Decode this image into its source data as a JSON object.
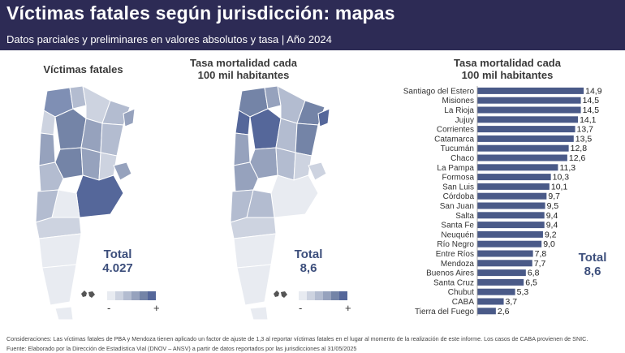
{
  "header": {
    "title": "Víctimas fatales según jurisdicción: mapas",
    "subtitle": "Datos parciales y preliminares en valores absolutos y tasa | Año 2024"
  },
  "panels": {
    "left": {
      "title": "Víctimas fatales",
      "total_label": "Total",
      "total_value": "4.027",
      "legend_min": "-",
      "legend_max": "+"
    },
    "middle": {
      "title_line1": "Tasa mortalidad cada",
      "title_line2": "100 mil habitantes",
      "total_label": "Total",
      "total_value": "8,6",
      "legend_min": "-",
      "legend_max": "+"
    },
    "right": {
      "title_line1": "Tasa mortalidad cada",
      "title_line2": "100 mil habitantes",
      "total_label": "Total",
      "total_value": "8,6"
    }
  },
  "colors": {
    "header_bg": "#2d2b55",
    "bar": "#4a5a88",
    "accent_text": "#3d4f7c",
    "legend_scale": [
      "#e8ebf1",
      "#cdd3e0",
      "#b3bcd0",
      "#96a2bd",
      "#7484a7",
      "#55679a"
    ]
  },
  "chart_data": {
    "type": "bar",
    "orientation": "horizontal",
    "title": "Tasa mortalidad cada 100 mil habitantes",
    "categories": [
      "Santiago del Estero",
      "Misiones",
      "La Rioja",
      "Jujuy",
      "Corrientes",
      "Catamarca",
      "Tucumán",
      "Chaco",
      "La Pampa",
      "Formosa",
      "San Luis",
      "Córdoba",
      "San Juan",
      "Salta",
      "Santa Fe",
      "Neuquén",
      "Río Negro",
      "Entre Ríos",
      "Mendoza",
      "Buenos Aires",
      "Santa Cruz",
      "Chubut",
      "CABA",
      "Tierra del Fuego"
    ],
    "values": [
      14.9,
      14.5,
      14.5,
      14.1,
      13.7,
      13.5,
      12.8,
      12.6,
      11.3,
      10.3,
      10.1,
      9.7,
      9.5,
      9.4,
      9.4,
      9.2,
      9.0,
      7.8,
      7.7,
      6.8,
      6.5,
      5.3,
      3.7,
      2.6
    ],
    "value_labels": [
      "14,9",
      "14,5",
      "14,5",
      "14,1",
      "13,7",
      "13,5",
      "12,8",
      "12,6",
      "11,3",
      "10,3",
      "10,1",
      "9,7",
      "9,5",
      "9,4",
      "9,4",
      "9,2",
      "9,0",
      "7,8",
      "7,7",
      "6,8",
      "6,5",
      "5,3",
      "3,7",
      "2,6"
    ],
    "xlim": [
      0,
      15
    ],
    "grid": false,
    "legend": "none"
  },
  "notes": {
    "consideraciones": "Consideraciones: Las víctimas fatales de PBA y Mendoza tienen aplicado un factor de ajuste de 1,3 al reportar víctimas fatales en el lugar al momento de la realización de este informe. Los casos de CABA provienen de SNIC.",
    "fuente": "Fuente: Elaborado por la Dirección de Estadística Vial (DNOV – ANSV) a partir de datos reportados por las jurisdicciones al 31/05/2025"
  }
}
